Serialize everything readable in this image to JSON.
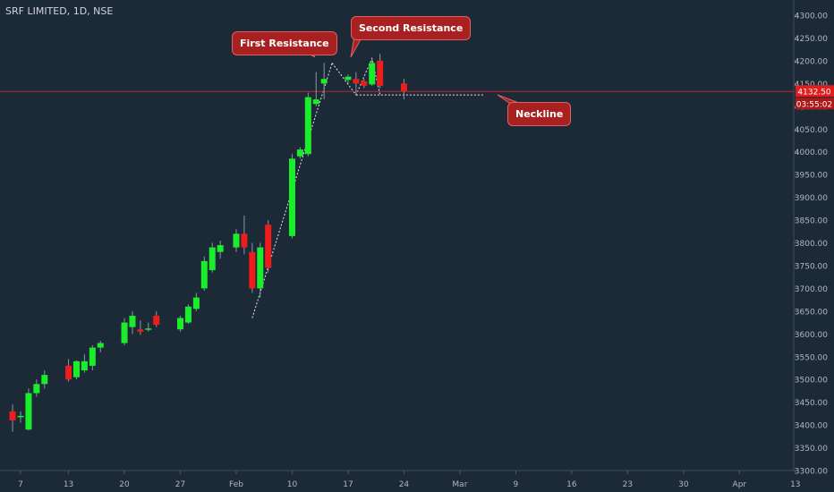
{
  "header": {
    "symbol": "SRF LIMITED, 1D, NSE"
  },
  "colors": {
    "background": "#1c2a38",
    "bull": "#1aee2a",
    "bear": "#ee1c1c",
    "axis_text": "#b2b5be",
    "price_line": "#c2242b",
    "callout_bg": "#a82020"
  },
  "annotations": {
    "first_resistance": "First Resistance",
    "second_resistance": "Second Resistance",
    "neckline": "Neckline"
  },
  "chart_data": {
    "type": "candlestick",
    "y_axis": {
      "min": 3300,
      "max": 4300,
      "ticks": [
        "4300.00",
        "4250.00",
        "4200.00",
        "4150.00",
        "4100.00",
        "4050.00",
        "4000.00",
        "3950.00",
        "3900.00",
        "3850.00",
        "3800.00",
        "3750.00",
        "3700.00",
        "3650.00",
        "3600.00",
        "3550.00",
        "3500.00",
        "3450.00",
        "3400.00",
        "3350.00",
        "3300.00"
      ]
    },
    "x_axis": {
      "ticks": [
        {
          "label": "7",
          "date": "2020-01-07"
        },
        {
          "label": "13",
          "date": "2020-01-13"
        },
        {
          "label": "20",
          "date": "2020-01-20"
        },
        {
          "label": "27",
          "date": "2020-01-27"
        },
        {
          "label": "Feb",
          "date": "2020-02-03"
        },
        {
          "label": "10",
          "date": "2020-02-10"
        },
        {
          "label": "17",
          "date": "2020-02-17"
        },
        {
          "label": "24",
          "date": "2020-02-24"
        },
        {
          "label": "Mar",
          "date": "2020-03-02"
        },
        {
          "label": "9",
          "date": "2020-03-09"
        },
        {
          "label": "16",
          "date": "2020-03-16"
        },
        {
          "label": "23",
          "date": "2020-03-23"
        },
        {
          "label": "30",
          "date": "2020-03-30"
        },
        {
          "label": "Apr",
          "date": "2020-04-06"
        },
        {
          "label": "13",
          "date": "2020-04-13"
        }
      ]
    },
    "current_price": {
      "label": "4132.50",
      "value": 4132.5,
      "countdown": "03:55:02"
    },
    "candles": [
      {
        "date": "2020-01-06",
        "open": 3430,
        "high": 3445,
        "low": 3385,
        "close": 3410
      },
      {
        "date": "2020-01-07",
        "open": 3418,
        "high": 3430,
        "low": 3405,
        "close": 3420
      },
      {
        "date": "2020-01-08",
        "open": 3390,
        "high": 3480,
        "low": 3388,
        "close": 3470
      },
      {
        "date": "2020-01-09",
        "open": 3470,
        "high": 3500,
        "low": 3462,
        "close": 3490
      },
      {
        "date": "2020-01-10",
        "open": 3490,
        "high": 3520,
        "low": 3480,
        "close": 3510
      },
      {
        "date": "2020-01-13",
        "open": 3530,
        "high": 3545,
        "low": 3495,
        "close": 3500
      },
      {
        "date": "2020-01-14",
        "open": 3505,
        "high": 3542,
        "low": 3500,
        "close": 3540
      },
      {
        "date": "2020-01-15",
        "open": 3520,
        "high": 3555,
        "low": 3515,
        "close": 3540
      },
      {
        "date": "2020-01-16",
        "open": 3530,
        "high": 3575,
        "low": 3520,
        "close": 3570
      },
      {
        "date": "2020-01-17",
        "open": 3570,
        "high": 3585,
        "low": 3560,
        "close": 3580
      },
      {
        "date": "2020-01-20",
        "open": 3580,
        "high": 3635,
        "low": 3575,
        "close": 3625
      },
      {
        "date": "2020-01-21",
        "open": 3615,
        "high": 3650,
        "low": 3600,
        "close": 3640
      },
      {
        "date": "2020-01-22",
        "open": 3610,
        "high": 3630,
        "low": 3598,
        "close": 3605
      },
      {
        "date": "2020-01-23",
        "open": 3610,
        "high": 3625,
        "low": 3605,
        "close": 3612
      },
      {
        "date": "2020-01-24",
        "open": 3640,
        "high": 3650,
        "low": 3615,
        "close": 3620
      },
      {
        "date": "2020-01-27",
        "open": 3610,
        "high": 3640,
        "low": 3605,
        "close": 3635
      },
      {
        "date": "2020-01-28",
        "open": 3625,
        "high": 3665,
        "low": 3622,
        "close": 3660
      },
      {
        "date": "2020-01-29",
        "open": 3655,
        "high": 3690,
        "low": 3650,
        "close": 3680
      },
      {
        "date": "2020-01-30",
        "open": 3700,
        "high": 3770,
        "low": 3695,
        "close": 3760
      },
      {
        "date": "2020-01-31",
        "open": 3740,
        "high": 3800,
        "low": 3735,
        "close": 3790
      },
      {
        "date": "2020-02-01",
        "open": 3780,
        "high": 3805,
        "low": 3765,
        "close": 3795
      },
      {
        "date": "2020-02-03",
        "open": 3790,
        "high": 3830,
        "low": 3780,
        "close": 3820
      },
      {
        "date": "2020-02-04",
        "open": 3820,
        "high": 3860,
        "low": 3775,
        "close": 3790
      },
      {
        "date": "2020-02-05",
        "open": 3780,
        "high": 3800,
        "low": 3690,
        "close": 3700
      },
      {
        "date": "2020-02-06",
        "open": 3700,
        "high": 3800,
        "low": 3680,
        "close": 3790
      },
      {
        "date": "2020-02-07",
        "open": 3840,
        "high": 3850,
        "low": 3735,
        "close": 3745
      },
      {
        "date": "2020-02-10",
        "open": 3815,
        "high": 3995,
        "low": 3810,
        "close": 3985
      },
      {
        "date": "2020-02-11",
        "open": 3990,
        "high": 4010,
        "low": 3985,
        "close": 4005
      },
      {
        "date": "2020-02-12",
        "open": 3995,
        "high": 4130,
        "low": 3990,
        "close": 4120
      },
      {
        "date": "2020-02-13",
        "open": 4105,
        "high": 4175,
        "low": 4100,
        "close": 4115
      },
      {
        "date": "2020-02-14",
        "open": 4150,
        "high": 4195,
        "low": 4115,
        "close": 4160
      },
      {
        "date": "2020-02-17",
        "open": 4158,
        "high": 4170,
        "low": 4150,
        "close": 4165
      },
      {
        "date": "2020-02-18",
        "open": 4160,
        "high": 4175,
        "low": 4125,
        "close": 4150
      },
      {
        "date": "2020-02-19",
        "open": 4155,
        "high": 4160,
        "low": 4140,
        "close": 4145
      },
      {
        "date": "2020-02-20",
        "open": 4148,
        "high": 4205,
        "low": 4145,
        "close": 4195
      },
      {
        "date": "2020-02-21",
        "open": 4200,
        "high": 4215,
        "low": 4140,
        "close": 4145
      },
      {
        "date": "2020-02-24",
        "open": 4150,
        "high": 4160,
        "low": 4115,
        "close": 4132.5
      }
    ],
    "pattern": {
      "trend_line": [
        {
          "date": "2020-02-05",
          "price": 3635
        },
        {
          "date": "2020-02-15",
          "price": 4195
        }
      ],
      "double_top": [
        {
          "date": "2020-02-15",
          "price": 4195
        },
        {
          "date": "2020-02-18",
          "price": 4125
        },
        {
          "date": "2020-02-20",
          "price": 4205
        },
        {
          "date": "2020-02-21",
          "price": 4125
        }
      ],
      "neckline": {
        "price": 4125,
        "start_date": "2020-02-18",
        "end_date": "2020-03-05"
      }
    }
  }
}
